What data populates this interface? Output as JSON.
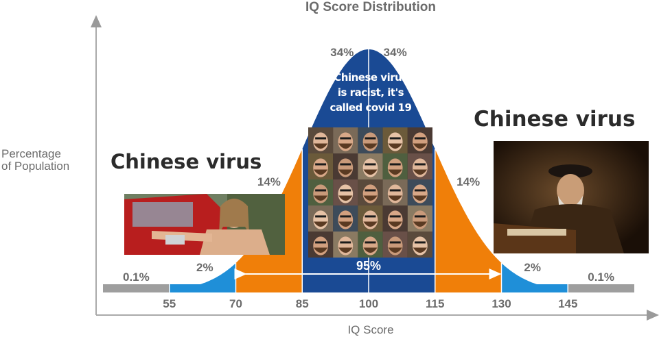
{
  "chart_data": {
    "type": "area",
    "title": "IQ Score Distribution",
    "xlabel": "IQ Score",
    "ylabel": "Percentage of Population",
    "x_ticks": [
      55,
      70,
      85,
      100,
      115,
      130,
      145
    ],
    "bands": [
      {
        "from": 40,
        "to": 55,
        "label": "0.1%",
        "color": "#9e9e9e"
      },
      {
        "from": 55,
        "to": 70,
        "label": "2%",
        "color": "#1f8fd8"
      },
      {
        "from": 70,
        "to": 85,
        "label": "14%",
        "color": "#f07f09"
      },
      {
        "from": 85,
        "to": 100,
        "label": "34%",
        "color": "#1a4a94"
      },
      {
        "from": 100,
        "to": 115,
        "label": "34%",
        "color": "#1a4a94"
      },
      {
        "from": 115,
        "to": 130,
        "label": "14%",
        "color": "#f07f09"
      },
      {
        "from": 130,
        "to": 145,
        "label": "2%",
        "color": "#1f8fd8"
      },
      {
        "from": 145,
        "to": 160,
        "label": "0.1%",
        "color": "#9e9e9e"
      }
    ],
    "range_annotation": {
      "from": 70,
      "to": 130,
      "label": "95%"
    }
  },
  "overlays": {
    "center_caption": [
      "Chinese virus",
      "is racist, it's",
      "called covid 19"
    ],
    "left_caption": "Chinese virus",
    "right_caption": "Chinese virus"
  }
}
